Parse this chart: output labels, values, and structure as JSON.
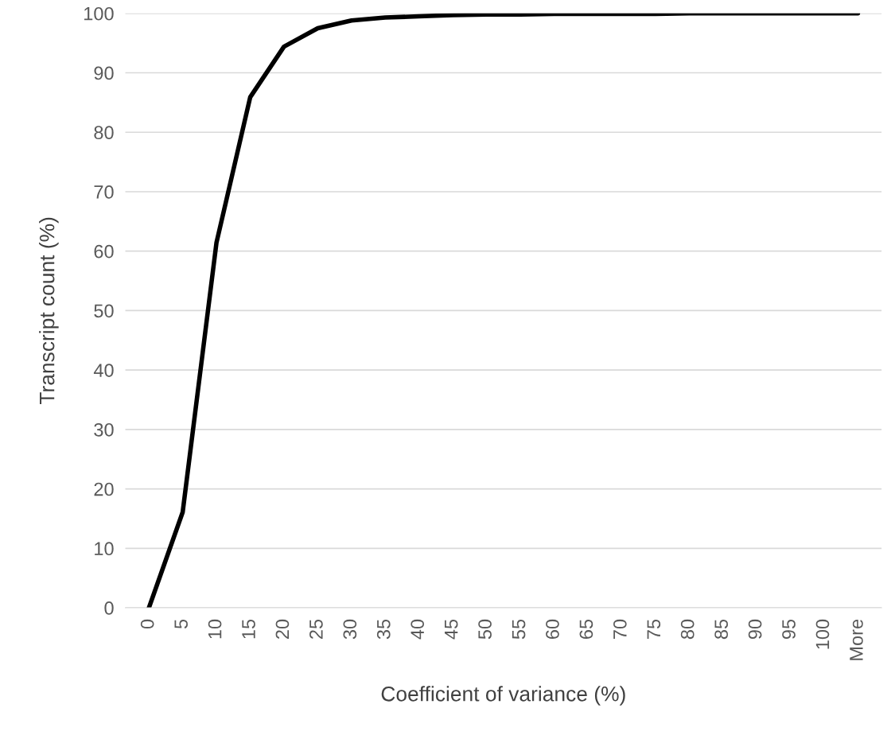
{
  "chart_data": {
    "type": "line",
    "xlabel": "Coefficient of variance (%)",
    "ylabel": "Transcript count (%)",
    "categories": [
      "0",
      "5",
      "10",
      "15",
      "20",
      "25",
      "30",
      "35",
      "40",
      "45",
      "50",
      "55",
      "60",
      "65",
      "70",
      "75",
      "80",
      "85",
      "90",
      "95",
      "100",
      "More"
    ],
    "series": [
      {
        "color": "#000000",
        "values": [
          0,
          16.1,
          61.4,
          85.9,
          94.4,
          97.5,
          98.8,
          99.3,
          99.5,
          99.7,
          99.8,
          99.8,
          99.9,
          99.9,
          99.9,
          99.9,
          100,
          100,
          100,
          100,
          100,
          100
        ]
      }
    ],
    "ylim": [
      0,
      100
    ],
    "yticks": [
      0,
      10,
      20,
      30,
      40,
      50,
      60,
      70,
      80,
      90,
      100
    ],
    "grid": "y",
    "marker": "none",
    "line_style": "solid"
  }
}
